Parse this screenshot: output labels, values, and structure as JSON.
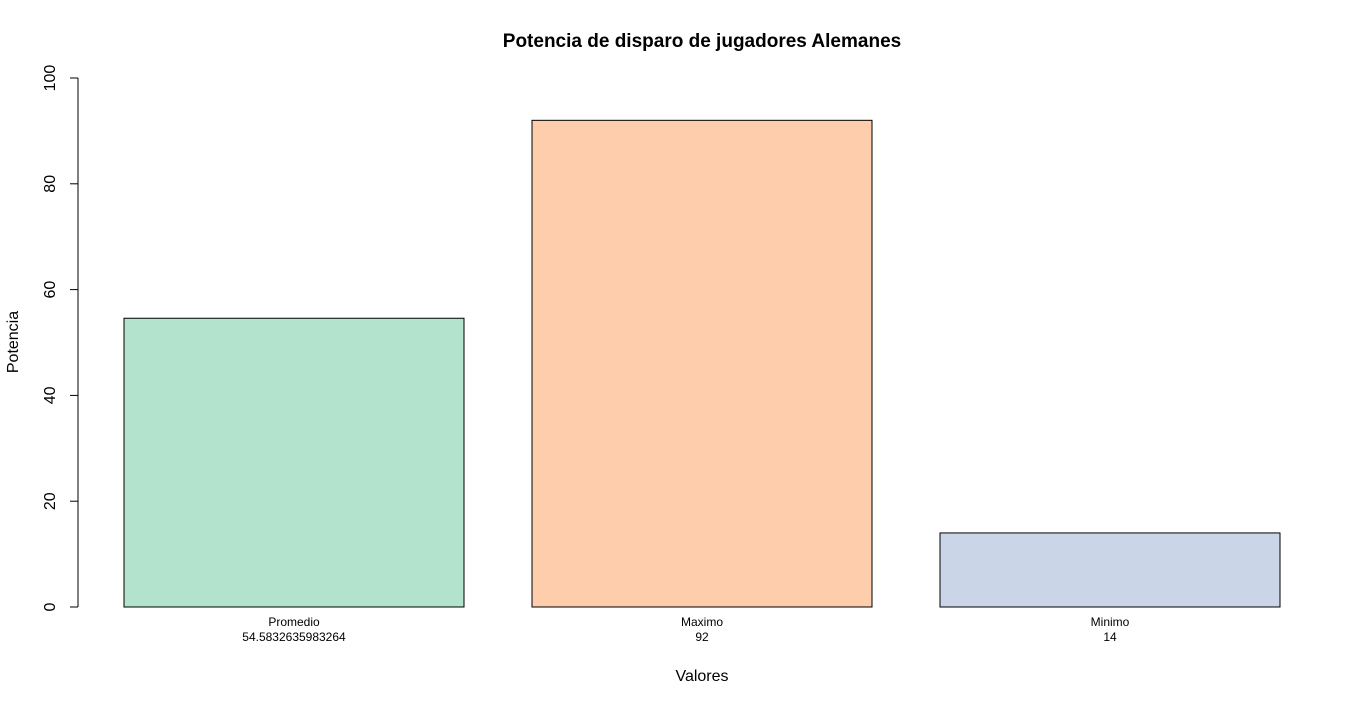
{
  "chart_data": {
    "type": "bar",
    "title": "Potencia de disparo de jugadores Alemanes",
    "xlabel": "Valores",
    "ylabel": "Potencia",
    "ylim": [
      0,
      100
    ],
    "yticks": [
      0,
      20,
      40,
      60,
      80,
      100
    ],
    "grid": false,
    "categories": [
      "Promedio",
      "Maximo",
      "Minimo"
    ],
    "value_labels": [
      "54.5832635983264",
      "92",
      "14"
    ],
    "values": [
      54.5832635983264,
      92,
      14
    ],
    "colors": [
      "#b3e2cd",
      "#fdcdac",
      "#cbd5e8"
    ]
  }
}
